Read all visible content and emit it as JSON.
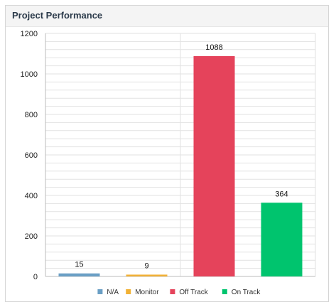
{
  "panel": {
    "title": "Project Performance"
  },
  "chart_data": {
    "type": "bar",
    "title": "",
    "xlabel": "",
    "ylabel": "",
    "categories": [
      "N/A",
      "Monitor",
      "Off Track",
      "On Track"
    ],
    "values": [
      15,
      9,
      1088,
      364
    ],
    "colors": [
      "#6a9fc5",
      "#f1b135",
      "#e5435b",
      "#00c46e"
    ],
    "ylim": [
      0,
      1200
    ],
    "yticks": [
      0,
      200,
      400,
      600,
      800,
      1000,
      1200
    ],
    "minor_grid_step": 40,
    "grid": true,
    "legend_position": "bottom",
    "legend": [
      "N/A",
      "Monitor",
      "Off Track",
      "On Track"
    ],
    "data_labels": [
      "15",
      "9",
      "1088",
      "364"
    ],
    "background_color": "#ffffff",
    "grid_color": "#e2e2e2"
  }
}
